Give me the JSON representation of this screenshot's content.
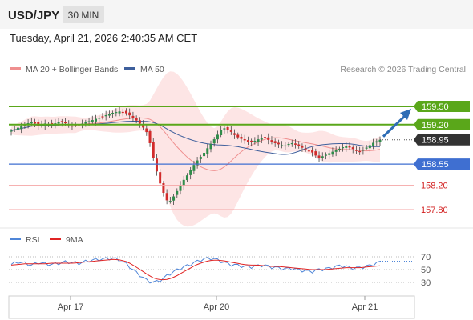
{
  "header": {
    "symbol": "USD/JPY",
    "interval": "30 MIN",
    "datetime": "Tuesday, April 21, 2026 2:40:35 AM CET"
  },
  "legend": {
    "ma20": "MA 20 + Bollinger Bands",
    "ma50": "MA 50",
    "credit": "Research © 2026 Trading Central"
  },
  "rsi_legend": {
    "rsi": "RSI",
    "ma": "9MA"
  },
  "colors": {
    "green": "#5aa71a",
    "blue_level": "#3f6fd1",
    "red_level": "#f4a6a6",
    "red_text": "#d21f1f",
    "bull": "#2f8c4a",
    "bear": "#d22b2b",
    "ma20": "#ef8f8f",
    "ma50": "#3e5f9c",
    "band_fill": "#fde0e0",
    "rsi_line": "#4f86d8",
    "rsi_ma": "#e02424",
    "price_badge": "#333333",
    "arrow": "#2e6db5"
  },
  "chart_data": {
    "type": "candlestick",
    "y_range": [
      157.65,
      159.64
    ],
    "x_labels": [
      "Apr 17",
      "Apr 20",
      "Apr 21"
    ],
    "levels": [
      {
        "label": "159.50",
        "value": 159.5,
        "kind": "resistance"
      },
      {
        "label": "159.20",
        "value": 159.2,
        "kind": "resistance"
      },
      {
        "label": "158.55",
        "value": 158.55,
        "kind": "pivot"
      },
      {
        "label": "158.20",
        "value": 158.2,
        "kind": "support"
      },
      {
        "label": "157.80",
        "value": 157.8,
        "kind": "support"
      }
    ],
    "current_price": {
      "label": "158.95",
      "value": 158.95
    },
    "rsi_levels": [
      {
        "label": "70",
        "value": 70
      },
      {
        "label": "50",
        "value": 50
      },
      {
        "label": "30",
        "value": 30
      }
    ],
    "price_path": [
      159.1,
      159.15,
      159.2,
      159.25,
      159.18,
      159.22,
      159.2,
      159.25,
      159.22,
      159.18,
      159.2,
      159.24,
      159.28,
      159.32,
      159.36,
      159.4,
      159.42,
      159.38,
      159.3,
      159.2,
      159.05,
      158.55,
      158.15,
      157.9,
      158.05,
      158.25,
      158.4,
      158.58,
      158.7,
      158.85,
      159.0,
      159.15,
      159.1,
      159.0,
      158.95,
      158.9,
      158.95,
      159.0,
      158.92,
      158.88,
      158.85,
      158.9,
      158.85,
      158.8,
      158.75,
      158.65,
      158.7,
      158.75,
      158.8,
      158.85,
      158.8,
      158.75,
      158.82,
      158.9,
      158.95
    ],
    "rsi_path": [
      58,
      62,
      60,
      57,
      61,
      59,
      58,
      60,
      62,
      61,
      60,
      63,
      65,
      66,
      67,
      68,
      64,
      58,
      48,
      40,
      32,
      30,
      34,
      42,
      48,
      53,
      57,
      62,
      66,
      68,
      66,
      62,
      58,
      57,
      55,
      54,
      56,
      57,
      54,
      53,
      51,
      52,
      50,
      48,
      47,
      50,
      51,
      53,
      56,
      55,
      52,
      53,
      55,
      58,
      62
    ],
    "rsi_ma_path": [
      57,
      58,
      59,
      59,
      59,
      59,
      60,
      60,
      60,
      60,
      61,
      62,
      63,
      64,
      65,
      66,
      65,
      62,
      56,
      49,
      42,
      36,
      34,
      35,
      39,
      45,
      51,
      57,
      61,
      64,
      65,
      64,
      62,
      60,
      58,
      57,
      57,
      56,
      55,
      55,
      54,
      53,
      52,
      51,
      50,
      50,
      50,
      51,
      52,
      53,
      53,
      53,
      54,
      55,
      56
    ]
  }
}
